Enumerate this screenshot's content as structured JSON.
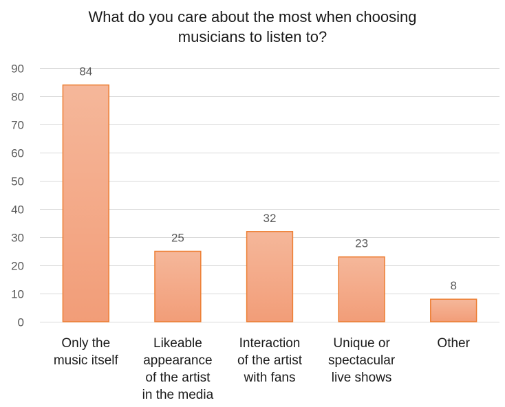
{
  "chart_data": {
    "type": "bar",
    "title_lines": [
      "What do you care about the most when choosing",
      "musicians to listen to?"
    ],
    "categories": [
      [
        "Only the",
        "music itself"
      ],
      [
        "Likeable",
        "appearance",
        "of the artist",
        "in the media"
      ],
      [
        "Interaction",
        "of the artist",
        "with fans"
      ],
      [
        "Unique or",
        "spectacular",
        "live shows"
      ],
      [
        "Other"
      ]
    ],
    "values": [
      84,
      25,
      32,
      23,
      8
    ],
    "data_labels": [
      "84",
      "25",
      "32",
      "23",
      "8"
    ],
    "y_ticks": [
      "0",
      "10",
      "20",
      "30",
      "40",
      "50",
      "60",
      "70",
      "80",
      "90"
    ],
    "ylim": [
      0,
      90
    ],
    "grid": true,
    "colors": {
      "bar_fill_top": "#f5b79a",
      "bar_fill_bottom": "#f29d78",
      "bar_stroke": "#ed7d31",
      "grid": "#d9d9d9",
      "tick_label": "#595959",
      "data_label": "#595959",
      "category_label": "#1a1a1a"
    }
  }
}
